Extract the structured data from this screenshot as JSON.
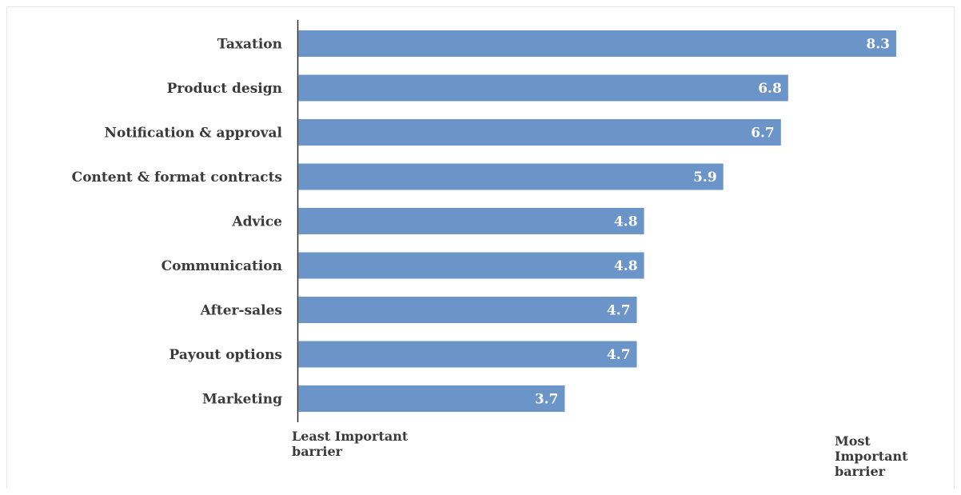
{
  "chart_data": {
    "type": "bar",
    "orientation": "horizontal",
    "categories": [
      "Taxation",
      "Product design",
      "Notification & approval",
      "Content & format contracts",
      "Advice",
      "Communication",
      "After-sales",
      "Payout options",
      "Marketing"
    ],
    "values": [
      8.3,
      6.8,
      6.7,
      5.9,
      4.8,
      4.8,
      4.7,
      4.7,
      3.7
    ],
    "xlim": [
      0,
      8.6
    ],
    "grid": false,
    "legend": "none",
    "bar_color": "#6b94c8",
    "left_annotation": "Least Important barrier",
    "right_annotation": "Most Important barrier"
  },
  "annotations": {
    "left_line1": "Least Important",
    "left_line2": "barrier",
    "right_line1": "Most",
    "right_line2": "Important",
    "right_line3": "barrier"
  }
}
